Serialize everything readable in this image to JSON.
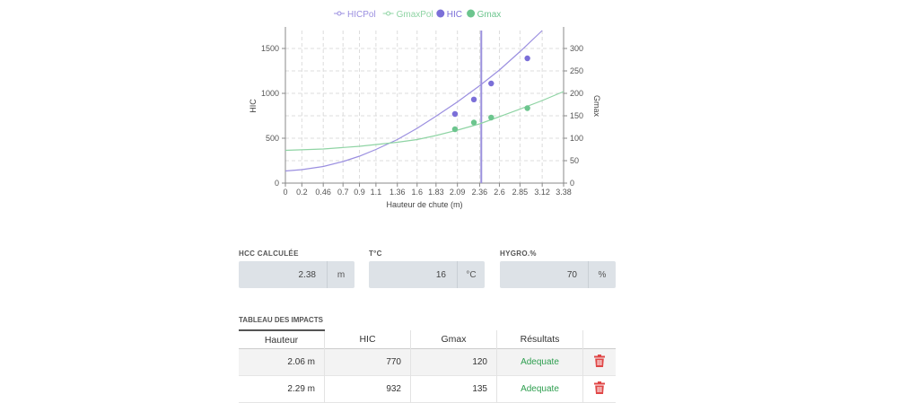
{
  "chart_data": {
    "type": "scatter",
    "xlabel": "Hauteur de chute (m)",
    "ylabel_left": "HIC",
    "ylabel_right": "Gmax",
    "x_ticks": [
      "0",
      "0.2",
      "0.46",
      "0.7",
      "0.9",
      "1.1",
      "1.36",
      "1.6",
      "1.83",
      "2.09",
      "2.36",
      "2.6",
      "2.85",
      "3.12",
      "3.38"
    ],
    "x_range": [
      0,
      3.38
    ],
    "y_left_range": [
      0,
      1700
    ],
    "y_left_ticks": [
      0,
      500,
      1000,
      1500
    ],
    "y_right_range": [
      0,
      340
    ],
    "y_right_ticks": [
      0,
      50,
      100,
      150,
      200,
      250,
      300
    ],
    "grid": true,
    "legend_position": "top",
    "legend": [
      "HICPol",
      "GmaxPol",
      "HIC",
      "Gmax"
    ],
    "hcc_line_x": 2.38,
    "series": [
      {
        "name": "HICPol",
        "axis": "left",
        "kind": "line",
        "color": "#9b8fe0",
        "x": [
          0,
          0.2,
          0.46,
          0.7,
          0.9,
          1.1,
          1.36,
          1.6,
          1.83,
          2.09,
          2.36,
          2.6,
          2.85,
          3.12
        ],
        "y": [
          135,
          150,
          185,
          240,
          300,
          375,
          485,
          610,
          745,
          905,
          1085,
          1260,
          1465,
          1700
        ]
      },
      {
        "name": "GmaxPol",
        "axis": "right",
        "kind": "line",
        "color": "#8fd4a4",
        "x": [
          0,
          0.46,
          0.9,
          1.36,
          1.6,
          1.83,
          2.09,
          2.36,
          2.6,
          2.85,
          3.12,
          3.38
        ],
        "y": [
          73,
          76,
          82,
          91,
          97,
          106,
          118,
          132,
          148,
          165,
          184,
          204
        ]
      },
      {
        "name": "HIC",
        "axis": "left",
        "kind": "scatter",
        "color": "#7b6fd8",
        "x": [
          2.06,
          2.29,
          2.5,
          2.94
        ],
        "y": [
          770,
          932,
          1110,
          1390
        ]
      },
      {
        "name": "Gmax",
        "axis": "right",
        "kind": "scatter",
        "color": "#6cc58e",
        "x": [
          2.06,
          2.29,
          2.5,
          2.94
        ],
        "y": [
          120,
          135,
          146,
          167
        ]
      }
    ]
  },
  "fields": {
    "hcc": {
      "label": "HCC CALCULÉE",
      "value": "2.38",
      "unit": "m"
    },
    "temp": {
      "label": "T°C",
      "value": "16",
      "unit": "°C"
    },
    "hygro": {
      "label": "HYGRO.%",
      "value": "70",
      "unit": "%"
    }
  },
  "table": {
    "title": "TABLEAU DES IMPACTS",
    "headers": [
      "Hauteur",
      "HIC",
      "Gmax",
      "Résultats"
    ],
    "rows": [
      {
        "hauteur": "2.06 m",
        "hic": "770",
        "gmax": "120",
        "resultat": "Adequate"
      },
      {
        "hauteur": "2.29 m",
        "hic": "932",
        "gmax": "135",
        "resultat": "Adequate"
      }
    ]
  },
  "colors": {
    "delete_icon": "#e04646",
    "result_ok": "#2e9e4f"
  }
}
